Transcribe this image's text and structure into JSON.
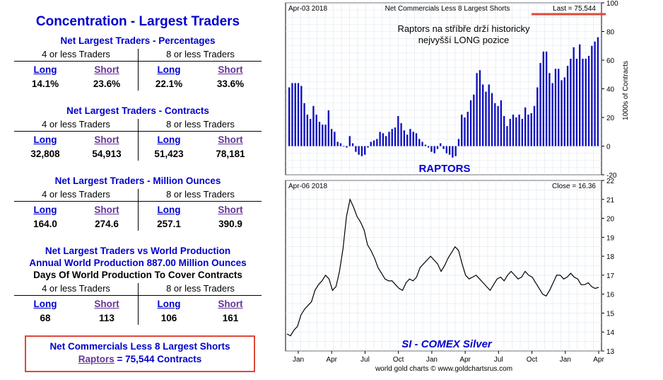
{
  "left_panel": {
    "title": "Concentration - Largest Traders",
    "sub_4": "4 or less Traders",
    "sub_8": "8 or less Traders",
    "long_label": "Long",
    "short_label": "Short",
    "sections": [
      {
        "title": "Net Largest Traders - Percentages",
        "values": [
          "14.1%",
          "23.6%",
          "22.1%",
          "33.6%"
        ]
      },
      {
        "title": "Net Largest Traders - Contracts",
        "values": [
          "32,808",
          "54,913",
          "51,423",
          "78,181"
        ]
      },
      {
        "title": "Net Largest Traders - Million Ounces",
        "values": [
          "164.0",
          "274.6",
          "257.1",
          "390.9"
        ]
      },
      {
        "title_line1": "Net Largest Traders vs World Production",
        "title_line2": "Annual World Production 887.00 Million Ounces",
        "title_line3": "Days Of World Production To Cover Contracts",
        "values": [
          "68",
          "113",
          "106",
          "161"
        ]
      }
    ],
    "box": {
      "line1": "Net Commercials Less 8 Largest Shorts",
      "link": "Raptors",
      "rest": " = 75,544 Contracts"
    }
  },
  "chart_data": [
    {
      "type": "bar",
      "title": "Net Commercials Less 8 Largest Shorts",
      "date_label": "Apr-03  2018",
      "last_label": "Last = 75,544",
      "annotation_line1": "Raptors na stříbře drží historicky",
      "annotation_line2": "nejvyšší LONG pozice",
      "series_label": "RAPTORS",
      "ylabel": "1000s of Contracts",
      "ylim": [
        -20,
        100
      ],
      "yticks": [
        -20,
        0,
        20,
        40,
        60,
        80,
        100
      ],
      "values": [
        41,
        44,
        44,
        44,
        42,
        30,
        22,
        19,
        28,
        22,
        17,
        15,
        15,
        25,
        12,
        10,
        3,
        2,
        0,
        -1,
        7,
        2,
        -4,
        -6,
        -7,
        -6,
        -1,
        3,
        4,
        5,
        10,
        9,
        7,
        10,
        12,
        13,
        21,
        16,
        11,
        8,
        12,
        10,
        9,
        5,
        3,
        1,
        -1,
        -4,
        -5,
        -2,
        2,
        -2,
        -5,
        -6,
        -8,
        -7,
        5,
        22,
        20,
        24,
        32,
        36,
        51,
        53,
        43,
        38,
        43,
        37,
        30,
        28,
        32,
        21,
        14,
        19,
        22,
        20,
        22,
        19,
        27,
        22,
        23,
        28,
        41,
        58,
        66,
        66,
        51,
        44,
        54,
        54,
        46,
        48,
        56,
        61,
        69,
        61,
        71,
        61,
        61,
        63,
        70,
        73,
        76
      ],
      "color": "#1010bb"
    },
    {
      "type": "line",
      "title": "SI  -  COMEX Silver",
      "date_label": "Apr-06  2018",
      "close_label": "Close = 16.36",
      "ylim": [
        13,
        22
      ],
      "yticks": [
        13,
        14,
        15,
        16,
        17,
        18,
        19,
        20,
        21,
        22
      ],
      "x_labels": [
        "Jan",
        "Apr",
        "Jul",
        "Oct",
        "Jan",
        "Apr",
        "Jul",
        "Oct",
        "Jan",
        "Apr"
      ],
      "footer": "world gold charts © www.goldchartsrus.com",
      "values": [
        13.9,
        13.8,
        14.1,
        14.3,
        14.9,
        15.2,
        15.4,
        15.6,
        16.2,
        16.5,
        16.7,
        17.0,
        16.8,
        16.2,
        16.4,
        17.2,
        18.4,
        20.1,
        21.0,
        20.6,
        20.1,
        19.8,
        19.4,
        18.6,
        18.3,
        17.9,
        17.4,
        17.1,
        16.8,
        16.7,
        16.7,
        16.5,
        16.3,
        16.2,
        16.6,
        16.8,
        16.7,
        16.9,
        17.4,
        17.6,
        17.8,
        18.0,
        17.8,
        17.6,
        17.2,
        17.5,
        17.9,
        18.2,
        18.5,
        18.3,
        17.6,
        17.0,
        16.8,
        16.9,
        17.0,
        16.8,
        16.6,
        16.4,
        16.2,
        16.5,
        16.8,
        16.9,
        16.7,
        17.0,
        17.2,
        17.0,
        16.8,
        16.9,
        17.2,
        17.0,
        16.9,
        16.6,
        16.3,
        16.0,
        15.9,
        16.2,
        16.6,
        17.0,
        17.0,
        16.8,
        16.9,
        17.1,
        16.9,
        16.8,
        16.5,
        16.5,
        16.6,
        16.4,
        16.3,
        16.36
      ]
    }
  ]
}
